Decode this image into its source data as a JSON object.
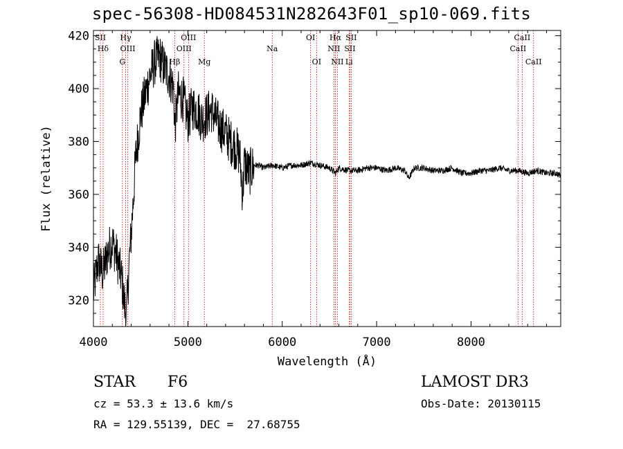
{
  "title": "spec-56308-HD084531N282643F01_sp10-069.fits",
  "info": {
    "class_label": "STAR",
    "subclass": "F6",
    "survey": "LAMOST DR3",
    "cz": "cz = 53.3 ± 13.6 km/s",
    "obs_date": "Obs-Date: 20130115",
    "radec": "RA = 129.55139, DEC =  27.68755"
  },
  "colors": {
    "line": "#000000",
    "marker": "#cc0000"
  },
  "chart_data": {
    "type": "line",
    "xlabel": "Wavelength (Å)",
    "ylabel": "Flux (relative)",
    "xlim": [
      4000,
      8950
    ],
    "ylim": [
      310,
      422
    ],
    "xticks": [
      4000,
      5000,
      6000,
      7000,
      8000
    ],
    "yticks": [
      320,
      340,
      360,
      380,
      400,
      420
    ],
    "grid": false,
    "series": [
      {
        "x": [
          4000,
          4050,
          4100,
          4150,
          4200,
          4250,
          4300,
          4330,
          4350,
          4380,
          4400,
          4450,
          4500,
          4550,
          4600,
          4650,
          4700,
          4750,
          4800,
          4850,
          4861,
          4900,
          4950,
          5000,
          5050,
          5100,
          5150,
          5200,
          5250,
          5300,
          5350,
          5400,
          5450,
          5500,
          5550,
          5580,
          5600,
          5650,
          5700,
          5750,
          5800,
          5900,
          6000,
          6100,
          6200,
          6300,
          6400,
          6500,
          6563,
          6600,
          6700,
          6800,
          6900,
          7000,
          7100,
          7200,
          7300,
          7340,
          7400,
          7500,
          7600,
          7700,
          7800,
          7900,
          8000,
          8100,
          8200,
          8300,
          8400,
          8500,
          8600,
          8700,
          8800,
          8900,
          8950
        ],
        "y": [
          323,
          335,
          330,
          338,
          342,
          336,
          328,
          318,
          314,
          335,
          345,
          375,
          390,
          398,
          405,
          410,
          412,
          408,
          405,
          400,
          385,
          398,
          396,
          388,
          393,
          392,
          388,
          390,
          392,
          388,
          385,
          383,
          380,
          378,
          375,
          360,
          372,
          368,
          371,
          371,
          370,
          371,
          370,
          371,
          371,
          372,
          371,
          370,
          368,
          370,
          369,
          369,
          370,
          370,
          369,
          370,
          369,
          366,
          370,
          370,
          369,
          369,
          370,
          368,
          368,
          369,
          369,
          370,
          369,
          369,
          368,
          369,
          368,
          368,
          367
        ]
      }
    ],
    "lines": [
      {
        "name": "Hδ",
        "x": 4102
      },
      {
        "name": "SII",
        "x": 4073
      },
      {
        "name": "G",
        "x": 4306
      },
      {
        "name": "OIII",
        "x": 4364
      },
      {
        "name": "Hγ",
        "x": 4341
      },
      {
        "name": "Hβ",
        "x": 4861
      },
      {
        "name": "OIII",
        "x": 4959
      },
      {
        "name": "OIII",
        "x": 5007
      },
      {
        "name": "Mg",
        "x": 5175
      },
      {
        "name": "Na",
        "x": 5894
      },
      {
        "name": "OI",
        "x": 6300
      },
      {
        "name": "OI",
        "x": 6364
      },
      {
        "name": "NII",
        "x": 6548
      },
      {
        "name": "Hα",
        "x": 6563
      },
      {
        "name": "NII",
        "x": 6584
      },
      {
        "name": "SII",
        "x": 6717
      },
      {
        "name": "SII",
        "x": 6731
      },
      {
        "name": "Li",
        "x": 6708
      },
      {
        "name": "CaII",
        "x": 8498
      },
      {
        "name": "CaII",
        "x": 8542
      },
      {
        "name": "CaII",
        "x": 8662
      }
    ]
  }
}
